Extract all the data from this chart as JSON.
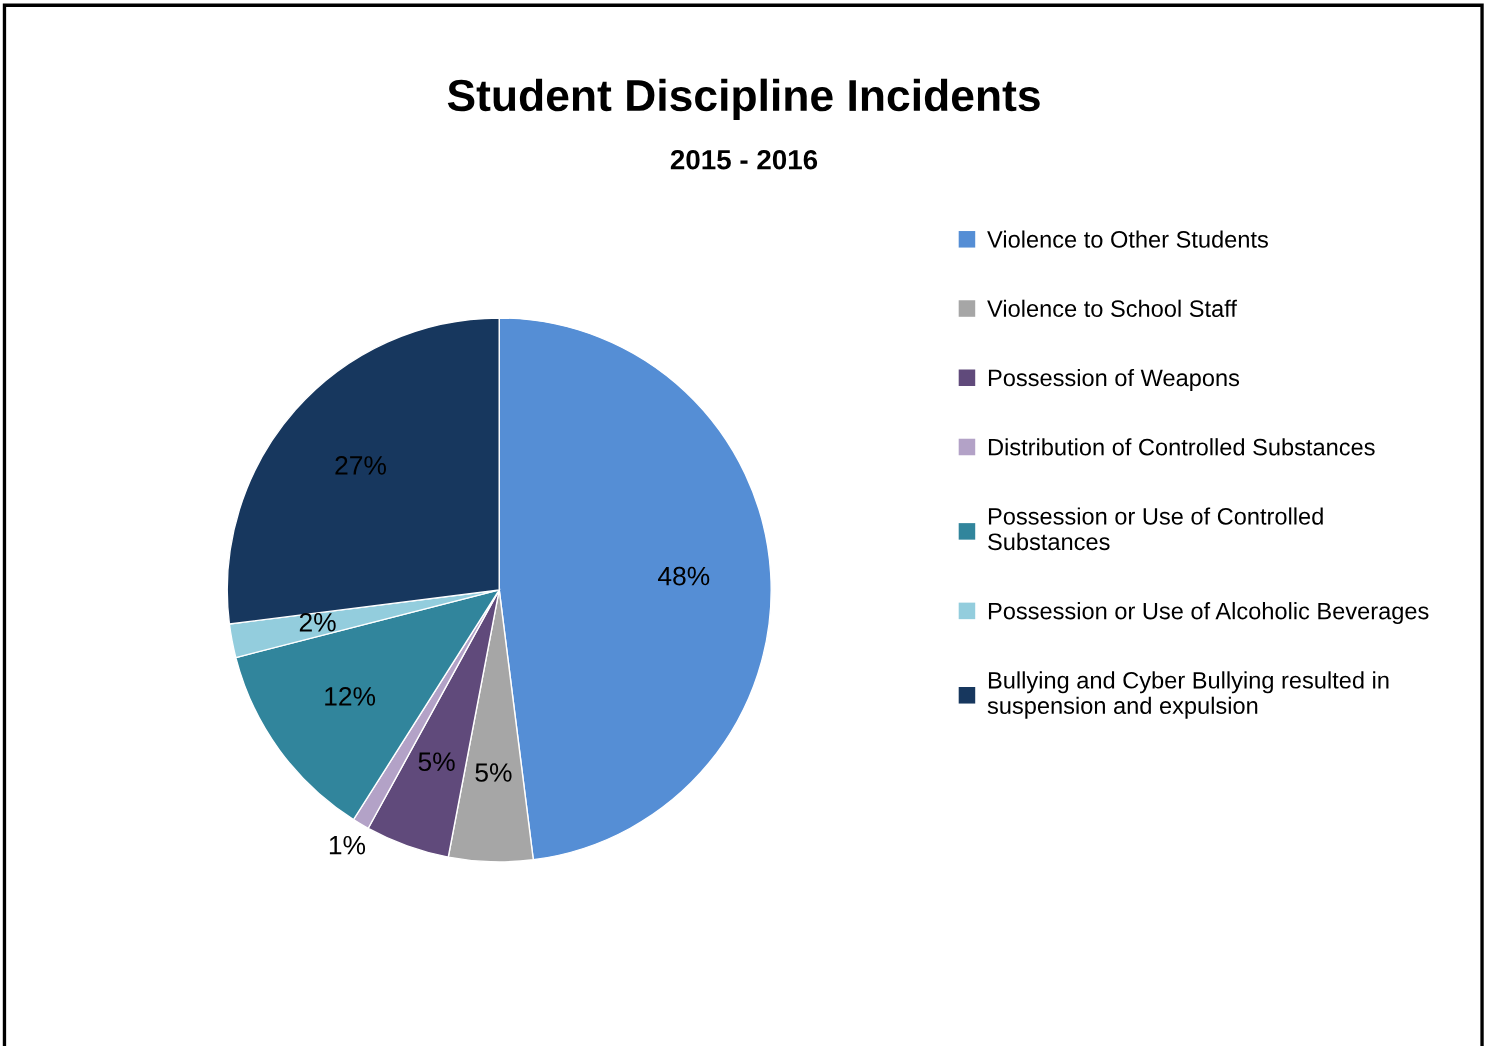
{
  "chart_data": {
    "type": "pie",
    "title": "Student Discipline Incidents",
    "subtitle": "2015 - 2016",
    "categories": [
      "Violence to Other Students",
      "Violence to School Staff",
      "Possession of Weapons",
      "Distribution of Controlled Substances",
      "Possession or Use of Controlled Substances",
      "Possession or Use of Alcoholic Beverages",
      "Bullying and Cyber Bullying resulted in suspension and expulsion"
    ],
    "values": [
      48,
      5,
      5,
      1,
      12,
      2,
      27
    ],
    "colors": [
      "#558ed5",
      "#a6a6a6",
      "#604a7b",
      "#b3a2c7",
      "#31859c",
      "#93cddd",
      "#17375e"
    ],
    "value_labels": [
      "48%",
      "5%",
      "5%",
      "1%",
      "12%",
      "2%",
      "27%"
    ],
    "legend": "right"
  }
}
